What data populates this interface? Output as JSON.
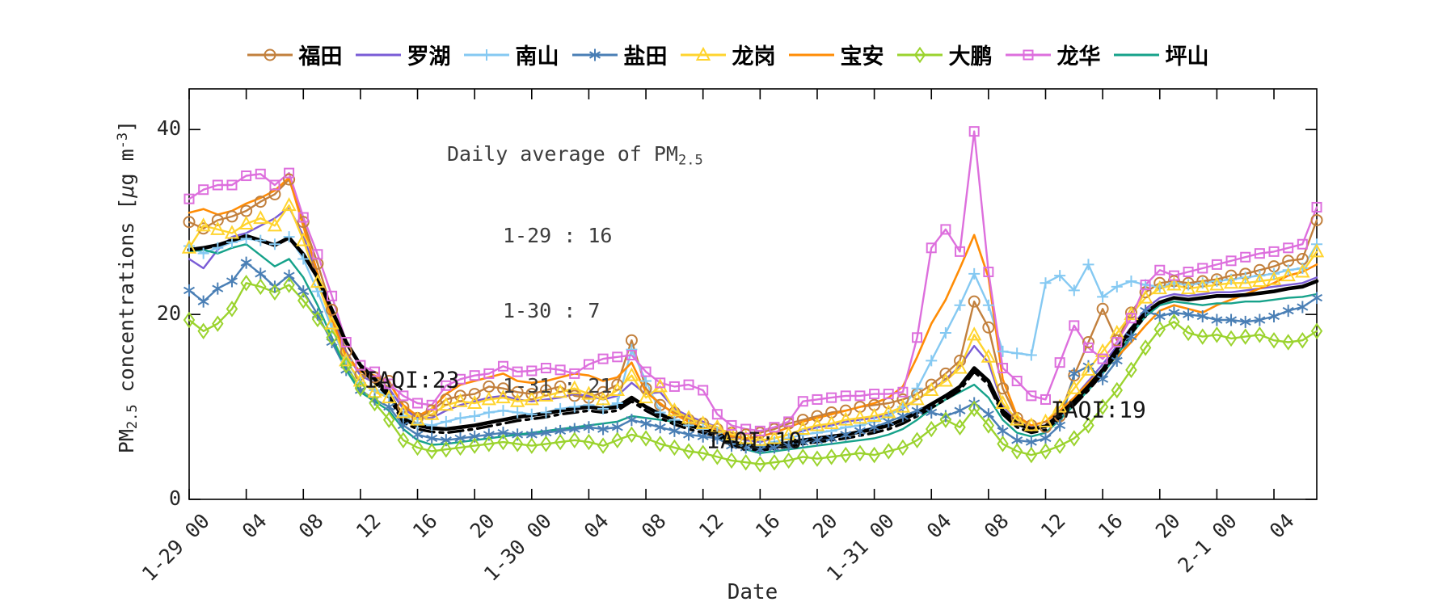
{
  "figure": {
    "xlabel": "Date",
    "ylabel_parts": {
      "p1": "PM",
      "sub": "2.5",
      "p2": " concentrations [",
      "mu": "μ",
      "p3": "g m",
      "sup": "-3",
      "p4": "]"
    }
  },
  "chart_data": {
    "type": "line",
    "title": "",
    "xlabel": "Date",
    "ylabel": "PM2.5 concentrations [ug m-3]",
    "xlim": [
      0,
      79
    ],
    "ylim": [
      0,
      44.4
    ],
    "yticks": [
      0,
      20,
      40
    ],
    "grid": false,
    "legend_position": "top-horizontal",
    "xticks": {
      "step": 4,
      "labels": [
        "1-29 00",
        "04",
        "08",
        "12",
        "16",
        "20",
        "1-30 00",
        "04",
        "08",
        "12",
        "16",
        "20",
        "1-31 00",
        "04",
        "08",
        "12",
        "16",
        "20",
        "2-1 00",
        "04"
      ]
    },
    "info_box": {
      "title_prefix": "Daily average of PM",
      "title_sub": "2.5",
      "lines": [
        "1-29 : 16",
        "1-30 : 7",
        "1-31 : 21"
      ]
    },
    "annotations": [
      {
        "text": "IAQI:23",
        "x": 15.6,
        "y": 12.9
      },
      {
        "text": "IAQI:10",
        "x": 39.6,
        "y": 6.4
      },
      {
        "text": "IAQI:19",
        "x": 63.7,
        "y": 9.7
      }
    ],
    "series": [
      {
        "id": "futian",
        "name": "福田",
        "color": "#c2803d",
        "marker": "circle",
        "width": 2.4,
        "in_legend": true,
        "values": [
          30.0,
          29.3,
          30.2,
          30.6,
          31.2,
          32.2,
          33.0,
          34.6,
          30.0,
          25.5,
          20.5,
          16.0,
          13.5,
          13.2,
          12.8,
          10.0,
          8.8,
          9.6,
          10.8,
          11.2,
          11.4,
          12.2,
          12.0,
          11.6,
          11.4,
          11.8,
          12.2,
          11.2,
          11.0,
          11.6,
          12.4,
          17.2,
          12.0,
          10.2,
          9.4,
          8.6,
          8.2,
          7.6,
          7.2,
          7.0,
          7.2,
          7.6,
          8.2,
          8.6,
          9.0,
          9.4,
          9.6,
          10.0,
          10.2,
          10.4,
          10.8,
          11.4,
          12.4,
          13.6,
          15.0,
          21.4,
          18.6,
          12.0,
          8.8,
          8.0,
          7.8,
          9.0,
          13.4,
          17.0,
          20.6,
          17.2,
          20.2,
          22.4,
          23.4,
          23.6,
          23.4,
          23.6,
          23.8,
          24.2,
          24.4,
          24.8,
          25.2,
          25.8,
          26.0,
          30.2
        ]
      },
      {
        "id": "luohu",
        "name": "罗湖",
        "color": "#7a5cd6",
        "marker": "none",
        "width": 2.4,
        "in_legend": true,
        "values": [
          26.0,
          25.0,
          27.0,
          28.4,
          28.8,
          29.6,
          30.4,
          31.6,
          28.5,
          24.0,
          19.8,
          15.8,
          13.4,
          12.6,
          12.0,
          9.8,
          8.8,
          8.8,
          9.6,
          10.2,
          10.6,
          11.0,
          11.2,
          10.8,
          10.6,
          10.8,
          11.0,
          11.4,
          11.2,
          10.8,
          11.2,
          12.6,
          11.4,
          11.6,
          9.8,
          9.0,
          8.4,
          7.8,
          6.8,
          6.4,
          6.2,
          6.6,
          7.0,
          7.4,
          7.8,
          8.0,
          8.4,
          8.6,
          8.8,
          9.2,
          9.8,
          10.8,
          11.8,
          13.0,
          14.4,
          16.6,
          14.8,
          10.2,
          8.4,
          7.8,
          8.0,
          9.4,
          11.0,
          12.8,
          14.6,
          16.6,
          18.6,
          20.6,
          21.8,
          22.2,
          22.0,
          22.2,
          22.4,
          22.4,
          22.6,
          22.8,
          23.0,
          23.2,
          23.4,
          24.0
        ]
      },
      {
        "id": "nanshan",
        "name": "南山",
        "color": "#85c9f2",
        "marker": "plus",
        "width": 2.4,
        "in_legend": true,
        "values": [
          27.4,
          26.6,
          27.2,
          27.8,
          28.2,
          28.0,
          27.6,
          28.4,
          26.0,
          22.5,
          18.5,
          15.0,
          12.6,
          11.8,
          11.2,
          9.0,
          8.2,
          8.0,
          8.4,
          8.8,
          9.0,
          9.4,
          9.6,
          9.4,
          9.2,
          9.4,
          9.8,
          10.0,
          10.2,
          9.8,
          10.4,
          16.2,
          12.8,
          9.4,
          8.6,
          8.0,
          7.6,
          7.2,
          6.0,
          5.6,
          5.8,
          6.2,
          6.6,
          7.0,
          7.2,
          7.4,
          7.8,
          8.0,
          8.4,
          9.0,
          10.0,
          12.0,
          15.0,
          18.0,
          21.0,
          24.4,
          21.0,
          16.0,
          15.8,
          15.6,
          23.4,
          24.2,
          22.6,
          25.4,
          21.9,
          23.0,
          23.6,
          23.2,
          23.0,
          23.4,
          23.2,
          23.4,
          23.6,
          23.8,
          24.0,
          24.2,
          24.4,
          24.8,
          25.0,
          27.6
        ]
      },
      {
        "id": "yantian",
        "name": "盐田",
        "color": "#4a7fb5",
        "marker": "asterisk",
        "width": 2.4,
        "in_legend": true,
        "values": [
          22.6,
          21.4,
          22.8,
          23.6,
          25.6,
          24.4,
          23.0,
          24.2,
          22.5,
          20.0,
          17.0,
          14.0,
          11.8,
          10.8,
          10.0,
          8.0,
          7.0,
          6.6,
          6.4,
          6.6,
          6.8,
          7.0,
          7.2,
          7.0,
          7.0,
          7.2,
          7.4,
          7.6,
          7.8,
          7.6,
          7.8,
          8.6,
          8.2,
          7.8,
          7.4,
          7.0,
          6.8,
          6.6,
          5.8,
          5.6,
          5.4,
          5.6,
          5.8,
          6.2,
          6.4,
          6.6,
          7.0,
          7.4,
          7.8,
          8.4,
          9.0,
          9.6,
          9.4,
          9.0,
          9.6,
          10.4,
          9.2,
          7.4,
          6.4,
          6.2,
          6.6,
          8.0,
          13.6,
          14.4,
          13.0,
          15.0,
          17.6,
          20.4,
          19.8,
          20.2,
          20.0,
          19.8,
          19.4,
          19.4,
          19.2,
          19.4,
          19.8,
          20.4,
          20.8,
          21.8
        ]
      },
      {
        "id": "longgang",
        "name": "龙岗",
        "color": "#ffd42e",
        "marker": "triangle",
        "width": 2.4,
        "in_legend": true,
        "values": [
          27.2,
          29.6,
          29.2,
          28.8,
          29.8,
          30.4,
          29.6,
          31.8,
          28.0,
          23.5,
          19.0,
          15.0,
          12.8,
          11.6,
          11.0,
          9.4,
          8.6,
          9.2,
          10.2,
          10.6,
          10.4,
          10.8,
          11.0,
          10.6,
          10.8,
          11.2,
          11.6,
          12.0,
          11.4,
          10.8,
          11.8,
          13.4,
          11.0,
          12.2,
          9.6,
          8.8,
          8.2,
          7.8,
          7.0,
          6.6,
          6.4,
          6.6,
          7.0,
          7.6,
          8.0,
          8.2,
          8.6,
          8.8,
          9.0,
          9.4,
          10.0,
          10.8,
          11.8,
          12.8,
          14.2,
          17.8,
          15.4,
          10.4,
          8.6,
          8.0,
          8.4,
          10.0,
          12.0,
          14.0,
          16.0,
          18.0,
          20.0,
          21.8,
          22.8,
          23.2,
          22.8,
          23.0,
          23.2,
          23.4,
          23.4,
          23.6,
          23.8,
          24.2,
          24.6,
          26.8
        ]
      },
      {
        "id": "baoan",
        "name": "宝安",
        "color": "#ff8c05",
        "marker": "none",
        "width": 2.6,
        "in_legend": true,
        "values": [
          31.0,
          31.4,
          30.8,
          31.2,
          32.0,
          32.6,
          33.4,
          34.8,
          29.5,
          24.5,
          19.5,
          15.5,
          13.8,
          13.4,
          12.6,
          10.2,
          9.0,
          9.8,
          11.4,
          12.4,
          12.8,
          13.2,
          13.6,
          12.8,
          12.6,
          12.8,
          13.2,
          13.6,
          13.4,
          12.8,
          13.2,
          14.8,
          11.6,
          10.4,
          9.2,
          8.4,
          7.8,
          7.4,
          6.8,
          6.6,
          6.8,
          7.2,
          7.8,
          8.4,
          8.8,
          9.2,
          9.6,
          10.0,
          10.4,
          11.0,
          12.2,
          15.4,
          19.0,
          21.6,
          25.0,
          28.6,
          24.0,
          13.0,
          9.0,
          8.0,
          8.4,
          9.6,
          11.0,
          12.6,
          14.0,
          15.4,
          17.0,
          18.8,
          20.4,
          21.0,
          20.6,
          20.2,
          21.0,
          21.6,
          22.2,
          22.8,
          23.4,
          24.2,
          24.6,
          25.4
        ]
      },
      {
        "id": "dapeng",
        "name": "大鹏",
        "color": "#9bd32e",
        "marker": "diamond",
        "width": 2.4,
        "in_legend": true,
        "values": [
          19.4,
          18.2,
          19.0,
          20.6,
          23.4,
          23.0,
          22.4,
          23.2,
          21.5,
          19.5,
          17.5,
          14.5,
          12.0,
          10.4,
          8.6,
          6.4,
          5.6,
          5.2,
          5.4,
          5.6,
          5.8,
          6.0,
          6.2,
          6.0,
          5.8,
          6.0,
          6.2,
          6.4,
          6.2,
          5.8,
          6.4,
          7.0,
          6.6,
          6.0,
          5.6,
          5.2,
          5.0,
          4.6,
          4.2,
          4.0,
          3.8,
          4.0,
          4.2,
          4.6,
          4.4,
          4.6,
          4.8,
          5.0,
          4.8,
          5.2,
          5.6,
          6.4,
          7.6,
          8.6,
          7.8,
          9.8,
          8.0,
          6.0,
          5.2,
          4.8,
          5.2,
          5.8,
          6.6,
          8.0,
          10.0,
          11.8,
          14.0,
          16.4,
          18.4,
          19.2,
          18.0,
          17.6,
          17.8,
          17.4,
          17.6,
          17.8,
          17.2,
          17.0,
          17.2,
          18.2
        ]
      },
      {
        "id": "longhua",
        "name": "龙华",
        "color": "#dd6fdd",
        "marker": "square",
        "width": 2.4,
        "in_legend": true,
        "values": [
          32.5,
          33.5,
          34.0,
          34.0,
          35.0,
          35.2,
          34.0,
          35.3,
          30.5,
          26.5,
          22.0,
          17.0,
          14.5,
          13.8,
          12.5,
          11.2,
          10.4,
          10.2,
          12.3,
          13.0,
          13.4,
          13.6,
          14.4,
          13.8,
          13.9,
          14.2,
          14.0,
          13.6,
          14.6,
          15.2,
          15.4,
          15.6,
          13.8,
          12.6,
          12.2,
          12.4,
          11.8,
          9.2,
          8.0,
          7.6,
          7.4,
          7.8,
          8.4,
          10.6,
          10.8,
          11.0,
          11.2,
          11.2,
          11.4,
          11.4,
          11.6,
          17.5,
          27.2,
          29.2,
          26.8,
          39.8,
          24.6,
          14.2,
          12.8,
          11.2,
          10.8,
          14.8,
          18.8,
          16.4,
          15.2,
          17.0,
          19.6,
          23.2,
          24.8,
          24.2,
          24.6,
          25.0,
          25.4,
          25.8,
          26.2,
          26.6,
          26.8,
          27.2,
          27.6,
          31.6
        ]
      },
      {
        "id": "pingshan",
        "name": "坪山",
        "color": "#16a28a",
        "marker": "none",
        "width": 2.4,
        "in_legend": true,
        "values": [
          26.8,
          27.0,
          26.6,
          27.2,
          27.6,
          26.4,
          25.2,
          26.0,
          24.0,
          21.0,
          17.5,
          14.0,
          11.6,
          10.6,
          9.6,
          7.6,
          6.4,
          5.9,
          6.0,
          6.2,
          6.4,
          6.6,
          6.8,
          7.0,
          7.2,
          7.4,
          7.6,
          7.8,
          8.0,
          8.2,
          8.4,
          9.0,
          8.8,
          8.6,
          8.4,
          8.0,
          7.8,
          7.0,
          6.0,
          5.4,
          5.0,
          5.2,
          5.4,
          5.6,
          5.8,
          6.0,
          6.2,
          6.4,
          6.6,
          7.0,
          7.6,
          8.6,
          9.8,
          10.8,
          11.6,
          12.4,
          11.0,
          8.6,
          7.2,
          6.8,
          7.2,
          8.6,
          10.2,
          11.8,
          13.6,
          15.6,
          17.8,
          19.8,
          21.0,
          21.4,
          21.2,
          21.0,
          21.2,
          21.2,
          21.4,
          21.4,
          21.6,
          21.8,
          21.9,
          22.2
        ]
      },
      {
        "id": "mean-dashdot",
        "name": "mean-reference-dashdot",
        "color": "#000000",
        "marker": "none",
        "width": 3.4,
        "in_legend": false,
        "line_style": "dashdot",
        "x_start": 12,
        "values": [
          14.1,
          12.6,
          11.1,
          8.3,
          7.6,
          7.3,
          7.2,
          7.4,
          7.6,
          7.9,
          8.2,
          8.5,
          8.7,
          8.9,
          9.2,
          9.4,
          9.6,
          9.4,
          9.6,
          10.6,
          9.6,
          8.8,
          8.1,
          7.6,
          7.2,
          6.8,
          5.8,
          5.5,
          5.3,
          5.5,
          5.7,
          6.0,
          6.2,
          6.4,
          6.6,
          6.9,
          7.2,
          7.6,
          8.2,
          9.0,
          9.9,
          10.8,
          11.8,
          13.8,
          12.4,
          9.2,
          7.8,
          7.2,
          7.5,
          8.8,
          10.2,
          11.8,
          13.6,
          15.8,
          18.0,
          19.8
        ]
      },
      {
        "id": "mean",
        "name": "mean-solid-black",
        "color": "#000000",
        "marker": "none",
        "width": 4.6,
        "in_legend": false,
        "values": [
          27.0,
          27.2,
          27.5,
          28.0,
          28.5,
          28.0,
          27.5,
          28.3,
          26.5,
          24.0,
          20.5,
          17.0,
          14.5,
          13.0,
          11.5,
          8.7,
          8.0,
          7.7,
          7.6,
          7.8,
          8.0,
          8.3,
          8.6,
          8.9,
          9.1,
          9.3,
          9.6,
          9.8,
          10.0,
          9.8,
          10.0,
          11.0,
          10.0,
          9.2,
          8.5,
          8.0,
          7.6,
          7.2,
          6.2,
          5.9,
          5.7,
          5.9,
          6.1,
          6.4,
          6.6,
          6.8,
          7.0,
          7.3,
          7.6,
          8.0,
          8.6,
          9.4,
          10.3,
          11.2,
          12.2,
          14.2,
          12.8,
          9.6,
          8.2,
          7.6,
          7.9,
          9.2,
          10.6,
          12.2,
          14.0,
          16.2,
          18.4,
          20.2,
          21.3,
          21.8,
          21.6,
          21.8,
          22.0,
          22.0,
          22.1,
          22.3,
          22.5,
          22.8,
          23.0,
          23.6
        ]
      }
    ]
  }
}
